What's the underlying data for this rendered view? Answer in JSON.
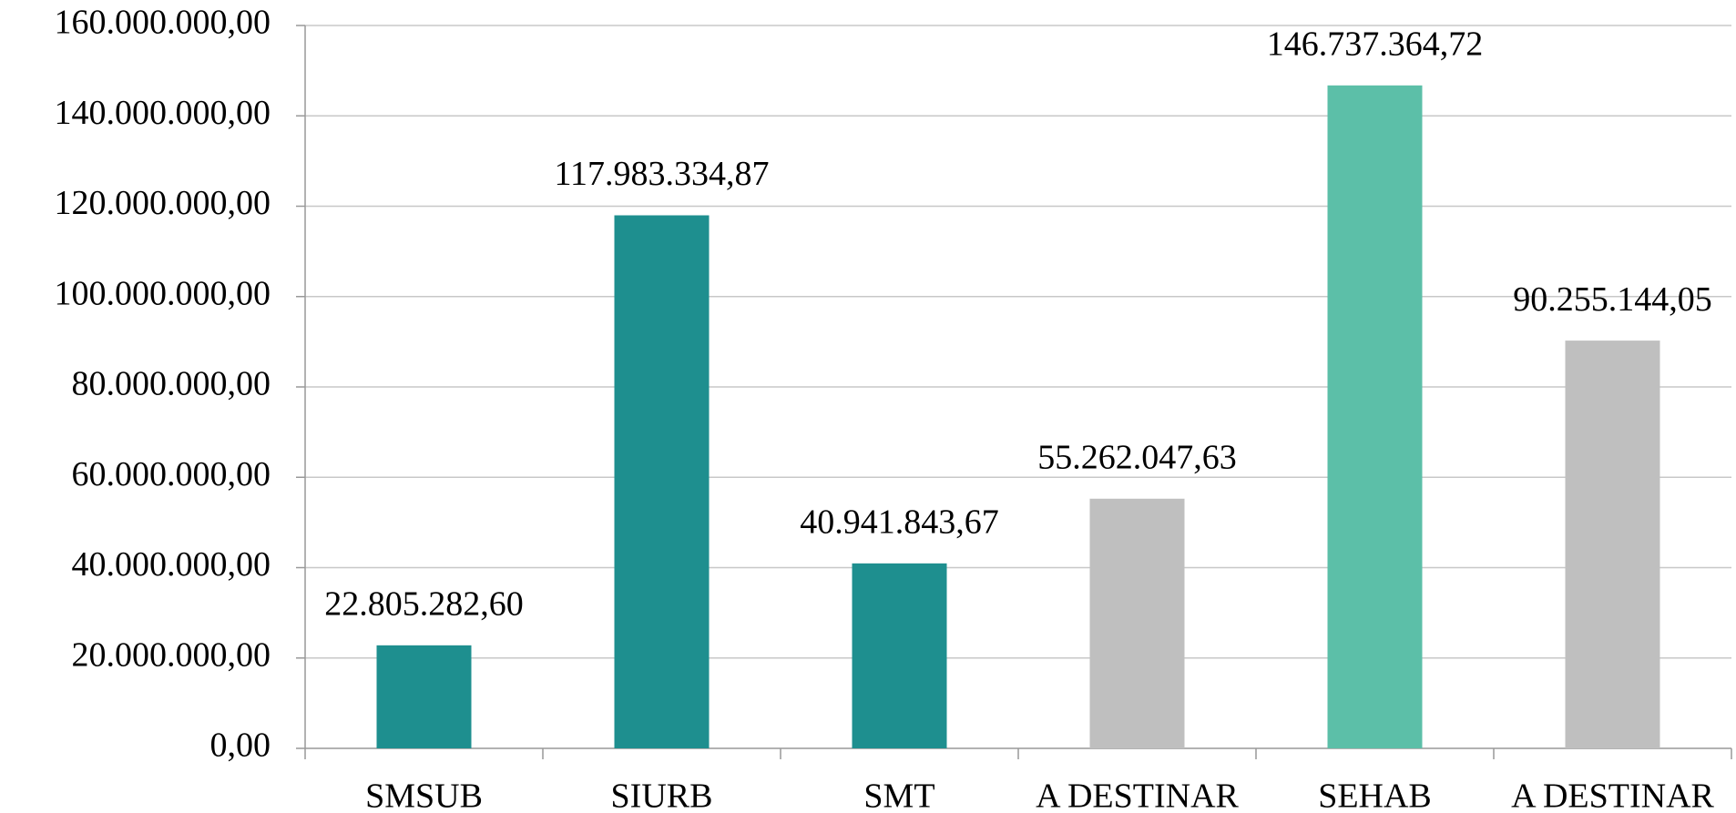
{
  "chart_data": {
    "type": "bar",
    "categories": [
      "SMSUB",
      "SIURB",
      "SMT",
      "A DESTINAR",
      "SEHAB",
      "A DESTINAR"
    ],
    "values": [
      22805282.6,
      117983334.87,
      40941843.67,
      55262047.63,
      146737364.72,
      90255144.05
    ],
    "value_labels": [
      "22.805.282,60",
      "117.983.334,87",
      "40.941.843,67",
      "55.262.047,63",
      "146.737.364,72",
      "90.255.144,05"
    ],
    "colors": [
      "#1e8f8f",
      "#1e8f8f",
      "#1e8f8f",
      "#bfbfbf",
      "#5cbfa8",
      "#bfbfbf"
    ],
    "ylim": [
      0,
      160000000
    ],
    "yticks": [
      {
        "value": 0,
        "label": "0,00"
      },
      {
        "value": 20000000,
        "label": "20.000.000,00"
      },
      {
        "value": 40000000,
        "label": "40.000.000,00"
      },
      {
        "value": 60000000,
        "label": "60.000.000,00"
      },
      {
        "value": 80000000,
        "label": "80.000.000,00"
      },
      {
        "value": 100000000,
        "label": "100.000.000,00"
      },
      {
        "value": 120000000,
        "label": "120.000.000,00"
      },
      {
        "value": 140000000,
        "label": "140.000.000,00"
      },
      {
        "value": 160000000,
        "label": "160.000.000,00"
      }
    ],
    "grid": true
  }
}
